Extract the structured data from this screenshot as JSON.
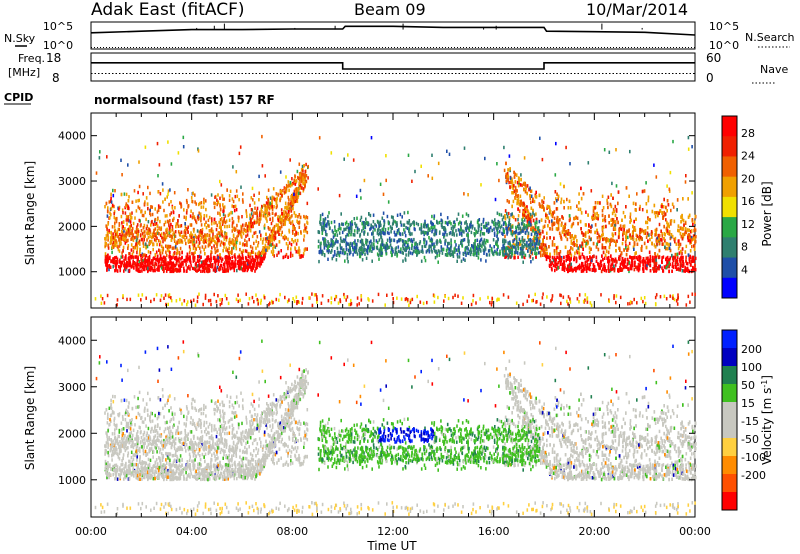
{
  "header": {
    "radar": "Adak East (fitACF)",
    "beam": "Beam 09",
    "date": "10/Mar/2014"
  },
  "panels": {
    "nsky": {
      "left_label": "N.Sky",
      "right_label": "N.Search",
      "ticks": [
        "10^5",
        "10^0"
      ]
    },
    "freq": {
      "left_label_1": "Freq.",
      "left_label_2": "[MHz]",
      "right_label": "Nave",
      "left_ticks": [
        "18",
        "8"
      ],
      "right_ticks": [
        "60",
        "0"
      ]
    },
    "cpid": {
      "label": "CPID",
      "text": "normalsound (fast) 157 RF"
    }
  },
  "colors": {
    "power_scale": [
      "#0000ff",
      "#1f4fa8",
      "#2f7f6f",
      "#2aa845",
      "#f0e000",
      "#f0a000",
      "#f06000",
      "#f02000",
      "#ff0000"
    ],
    "velocity_scale": [
      "#ff0000",
      "#ff5000",
      "#ff8c00",
      "#ffd040",
      "#c8c8c0",
      "#c8c8c0",
      "#40c020",
      "#208050",
      "#0000c0",
      "#0020ff"
    ]
  },
  "chart_data": [
    {
      "type": "line",
      "title": "N.Sky / N.Search",
      "xlabel": "",
      "ylabel": "N.Sky",
      "x_range": [
        0,
        24
      ],
      "ylim": [
        0,
        5
      ],
      "series": [
        {
          "name": "N.Sky",
          "x": [
            0,
            2,
            4,
            6,
            8,
            10,
            10.1,
            12,
            14,
            16,
            18,
            18.1,
            20,
            22,
            24
          ],
          "y": [
            3.0,
            3.3,
            3.6,
            3.6,
            3.7,
            3.7,
            4.2,
            4.2,
            4.0,
            4.0,
            4.0,
            3.3,
            3.2,
            3.1,
            2.6
          ]
        }
      ]
    },
    {
      "type": "line",
      "title": "Freq. [MHz] / Nave",
      "xlabel": "",
      "ylabel": "Freq. [MHz]",
      "x_range": [
        0,
        24
      ],
      "ylim": [
        8,
        18
      ],
      "series": [
        {
          "name": "Freq.",
          "x": [
            0,
            10,
            10,
            18,
            18,
            24
          ],
          "y": [
            14.5,
            14.5,
            12.3,
            12.3,
            14.5,
            14.5
          ]
        },
        {
          "name": "Nave",
          "x": [
            0,
            24
          ],
          "y": [
            10,
            10
          ]
        }
      ]
    },
    {
      "type": "heatmap",
      "title": "Power [dB]",
      "xlabel": "Time UT",
      "ylabel": "Slant Range [km]",
      "x_range": [
        0,
        24
      ],
      "ylim": [
        200,
        4500
      ],
      "x_ticks": [
        "00:00",
        "04:00",
        "08:00",
        "12:00",
        "16:00",
        "20:00",
        "00:00"
      ],
      "y_ticks": [
        "1000",
        "2000",
        "3000",
        "4000"
      ],
      "colorbar_label": "Power [dB]",
      "colorbar_ticks": [
        "4",
        "8",
        "12",
        "16",
        "20",
        "24",
        "28"
      ],
      "regions": [
        {
          "name": "evening band",
          "t": [
            0.5,
            6.6
          ],
          "range_km": [
            900,
            1300
          ],
          "value_db": 28
        },
        {
          "name": "evening slanted",
          "t": [
            5.0,
            8.5
          ],
          "range_km": [
            1300,
            3300
          ],
          "value_db": 22
        },
        {
          "name": "evening upper",
          "t": [
            0.5,
            6.5
          ],
          "range_km": [
            1400,
            3000
          ],
          "value_db": 20
        },
        {
          "name": "midday scatter",
          "t": [
            10.5,
            17.8
          ],
          "range_km": [
            1200,
            2200
          ],
          "value_db": 10
        },
        {
          "name": "morning slanted",
          "t": [
            16.5,
            20.0
          ],
          "range_km": [
            1300,
            3000
          ],
          "value_db": 22
        },
        {
          "name": "morning band",
          "t": [
            18.5,
            24.0
          ],
          "range_km": [
            900,
            1400
          ],
          "value_db": 28
        },
        {
          "name": "morning upper",
          "t": [
            18.5,
            24.0
          ],
          "range_km": [
            1400,
            2900
          ],
          "value_db": 20
        }
      ]
    },
    {
      "type": "heatmap",
      "title": "Velocity [m s-1]",
      "xlabel": "Time UT",
      "ylabel": "Slant Range [km]",
      "x_range": [
        0,
        24
      ],
      "ylim": [
        200,
        4500
      ],
      "x_ticks": [
        "00:00",
        "04:00",
        "08:00",
        "12:00",
        "16:00",
        "20:00",
        "00:00"
      ],
      "y_ticks": [
        "1000",
        "2000",
        "3000",
        "4000"
      ],
      "colorbar_label": "Velocity [m s-1]",
      "colorbar_ticks": [
        "200",
        "100",
        "50",
        "15",
        "-15",
        "-50",
        "-100",
        "-200"
      ],
      "regions": [
        {
          "name": "evening ground scatter",
          "t": [
            0.5,
            8.5
          ],
          "range_km": [
            900,
            3300
          ],
          "value_ms": 0
        },
        {
          "name": "midday flow",
          "t": [
            9.5,
            17.5
          ],
          "range_km": [
            1200,
            2100
          ],
          "value_ms": 60
        },
        {
          "name": "midday fast",
          "t": [
            11.5,
            13.5
          ],
          "range_km": [
            1800,
            2100
          ],
          "value_ms": 200
        },
        {
          "name": "morning ground scatter",
          "t": [
            16.5,
            24.0
          ],
          "range_km": [
            900,
            3000
          ],
          "value_ms": 0
        }
      ]
    }
  ],
  "axes": {
    "xlabel": "Time UT",
    "ylabel": "Slant Range [km]",
    "x_ticks": [
      "00:00",
      "04:00",
      "08:00",
      "12:00",
      "16:00",
      "20:00",
      "00:00"
    ],
    "y_ticks": [
      "1000",
      "2000",
      "3000",
      "4000"
    ]
  },
  "power_bar": {
    "label": "Power [dB]",
    "ticks": [
      "28",
      "24",
      "20",
      "16",
      "12",
      "8",
      "4"
    ]
  },
  "velocity_bar": {
    "label": "Velocity [m s-1]",
    "label_main": "Velocity [m s",
    "label_exp": "-1",
    "label_end": "]",
    "ticks": [
      "200",
      "100",
      "50",
      "15",
      "-15",
      "-50",
      "-100",
      "-200"
    ]
  }
}
